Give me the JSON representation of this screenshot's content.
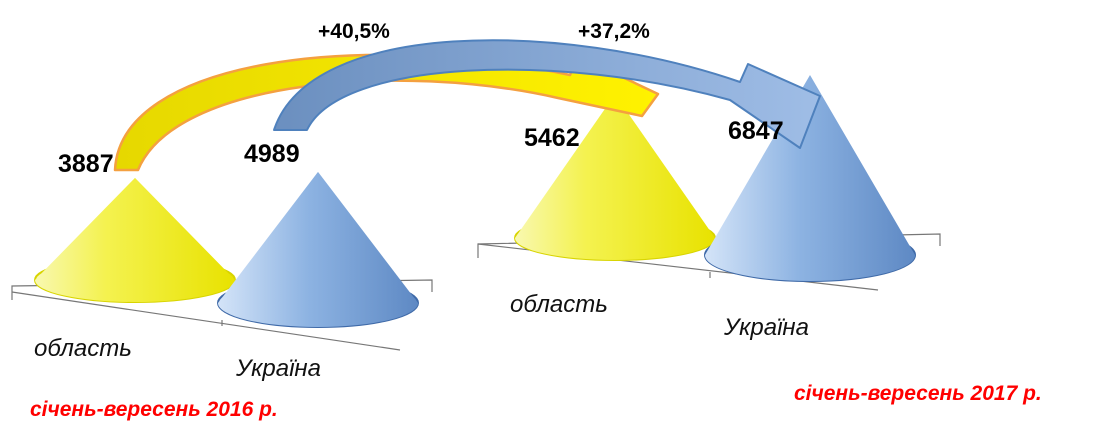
{
  "chart_data": [
    {
      "type": "bar",
      "shape": "cone",
      "period_label": "січень-вересень 2016 р.",
      "categories": [
        "область",
        "Україна"
      ],
      "values": [
        3887,
        4989
      ],
      "value_labels": [
        "3887",
        "4989"
      ],
      "colors": [
        "#f2f030",
        "#7fa7da"
      ]
    },
    {
      "type": "bar",
      "shape": "cone",
      "period_label": "січень-вересень 2017 р.",
      "categories": [
        "область",
        "Україна"
      ],
      "values": [
        5462,
        6847
      ],
      "value_labels": [
        "5462",
        "6847"
      ],
      "colors": [
        "#f2f030",
        "#7fa7da"
      ]
    }
  ],
  "growth": [
    {
      "label": "+40,5%",
      "value": 40.5,
      "color": "#f4a040"
    },
    {
      "label": "+37,2%",
      "value": 37.2,
      "color": "#4f81bd"
    }
  ]
}
